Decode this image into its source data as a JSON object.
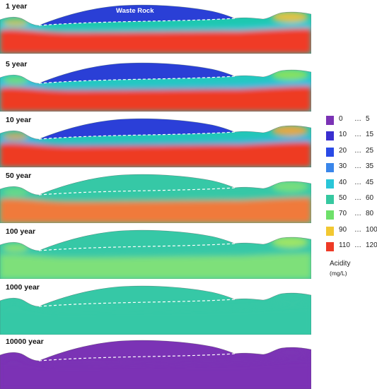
{
  "panels": [
    {
      "label": "1 year",
      "annotation": "Waste Rock",
      "colors": {
        "dump": "#2a3fd6",
        "upper": "#1ec8b0",
        "lower": "#f03a26",
        "top_band": "#3ec9e8",
        "accent": "#f4c23a"
      }
    },
    {
      "label": "5 year",
      "colors": {
        "dump": "#2a3fd6",
        "upper": "#24c8c0",
        "lower": "#ee3a24",
        "top_band": "#38b8ee",
        "accent": "#8fe35a"
      }
    },
    {
      "label": "10 year",
      "colors": {
        "dump": "#2b3fd8",
        "upper": "#22c6b8",
        "lower": "#ee3a22",
        "top_band": "#3fb0ee",
        "accent": "#f6a53a"
      }
    },
    {
      "label": "50 year",
      "colors": {
        "dump": "#36c8a6",
        "upper": "#36c8a6",
        "lower": "#f07a3a",
        "top_band": "#3cc8a8",
        "accent": "#7ee07a"
      }
    },
    {
      "label": "100 year",
      "colors": {
        "dump": "#36c8a6",
        "upper": "#36c8a6",
        "lower": "#7ee07a",
        "top_band": "#3cc8a8",
        "accent": "#a8e860"
      }
    },
    {
      "label": "1000 year",
      "colors": {
        "dump": "#36c8a6",
        "upper": "#36c8a6",
        "lower": "#36c8a6",
        "top_band": "#36c8a6",
        "accent": "#36c8a6"
      }
    },
    {
      "label": "10000 year",
      "colors": {
        "dump": "#7b33b5",
        "upper": "#7b33b5",
        "lower": "#7b33b5",
        "top_band": "#7b33b5",
        "accent": "#7b33b5"
      }
    }
  ],
  "legend": {
    "title": "Acidity",
    "unit": "(mg/L)",
    "items": [
      {
        "low": "0",
        "high": "5",
        "color": "#7b33b5"
      },
      {
        "low": "10",
        "high": "15",
        "color": "#3a2fd0"
      },
      {
        "low": "20",
        "high": "25",
        "color": "#2a4ae6"
      },
      {
        "low": "30",
        "high": "35",
        "color": "#3a86ea"
      },
      {
        "low": "40",
        "high": "45",
        "color": "#2ac6d8"
      },
      {
        "low": "50",
        "high": "60",
        "color": "#36c8a0"
      },
      {
        "low": "70",
        "high": "80",
        "color": "#6ee06a"
      },
      {
        "low": "90",
        "high": "100",
        "color": "#f2c832"
      },
      {
        "low": "110",
        "high": "120",
        "color": "#ee3a26"
      }
    ]
  }
}
